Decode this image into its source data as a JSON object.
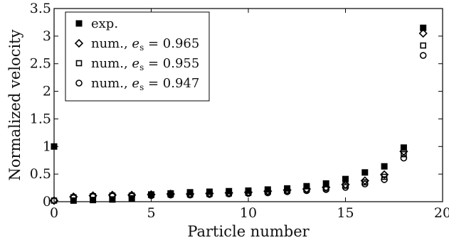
{
  "chart_data": {
    "type": "scatter",
    "xlabel": "Particle number",
    "ylabel": "Normalized velocity",
    "xlim": [
      0,
      20
    ],
    "ylim": [
      0,
      3.5
    ],
    "xticks": [
      0,
      5,
      10,
      15,
      20
    ],
    "yticks": [
      0,
      0.5,
      1,
      1.5,
      2,
      2.5,
      3,
      3.5
    ],
    "xtick_labels": [
      "0",
      "5",
      "10",
      "15",
      "20"
    ],
    "ytick_labels": [
      "0",
      "0.5",
      "1",
      "1.5",
      "2",
      "2.5",
      "3",
      "3.5"
    ],
    "grid": false,
    "legend_position": "top-left",
    "x": [
      0,
      1,
      2,
      3,
      4,
      5,
      6,
      7,
      8,
      9,
      10,
      11,
      12,
      13,
      14,
      15,
      16,
      17,
      18,
      19
    ],
    "series": [
      {
        "name": "exp.",
        "marker": "filled-square",
        "values": [
          1.0,
          0.02,
          0.03,
          0.04,
          0.06,
          0.13,
          0.15,
          0.17,
          0.18,
          0.19,
          0.2,
          0.22,
          0.24,
          0.28,
          0.33,
          0.41,
          0.53,
          0.64,
          0.98,
          3.15
        ]
      },
      {
        "name": "num., e_s = 0.965",
        "label_main": "num., ",
        "label_math": "e",
        "label_sub": "s",
        "label_value": " = 0.965",
        "marker": "open-diamond",
        "values": [
          0.02,
          0.09,
          0.11,
          0.12,
          0.12,
          0.13,
          0.14,
          0.14,
          0.15,
          0.16,
          0.17,
          0.19,
          0.21,
          0.23,
          0.26,
          0.31,
          0.38,
          0.49,
          0.91,
          3.05
        ]
      },
      {
        "name": "num., e_s = 0.955",
        "label_main": "num., ",
        "label_math": "e",
        "label_sub": "s",
        "label_value": " = 0.955",
        "marker": "open-square",
        "values": [
          0.02,
          0.08,
          0.1,
          0.11,
          0.11,
          0.12,
          0.13,
          0.13,
          0.14,
          0.15,
          0.16,
          0.18,
          0.2,
          0.22,
          0.24,
          0.29,
          0.35,
          0.45,
          0.86,
          2.83
        ]
      },
      {
        "name": "num., e_s = 0.947",
        "label_main": "num., ",
        "label_math": "e",
        "label_sub": "s",
        "label_value": " = 0.947",
        "marker": "open-circle",
        "values": [
          0.02,
          0.07,
          0.09,
          0.1,
          0.1,
          0.11,
          0.12,
          0.12,
          0.13,
          0.14,
          0.15,
          0.16,
          0.18,
          0.2,
          0.22,
          0.26,
          0.32,
          0.4,
          0.79,
          2.65
        ]
      }
    ]
  }
}
